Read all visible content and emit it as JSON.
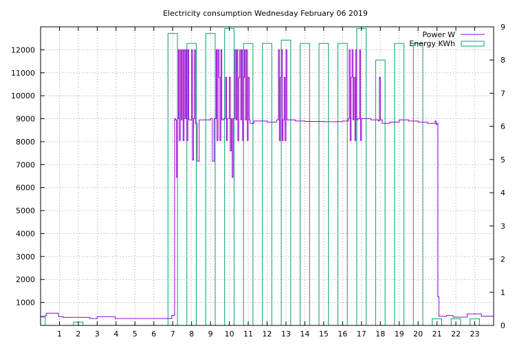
{
  "chart_data": {
    "type": "bar+line",
    "title": "Electricity consumption Wednesday February 06 2019",
    "xlabel": "",
    "ylabel": "",
    "y2label": "",
    "xlim": [
      0,
      24
    ],
    "ylim": [
      0,
      13000
    ],
    "y2lim": [
      0,
      9
    ],
    "x_ticks": [
      1,
      2,
      3,
      4,
      5,
      6,
      7,
      8,
      9,
      10,
      11,
      12,
      13,
      14,
      15,
      16,
      17,
      18,
      19,
      20,
      21,
      22,
      23
    ],
    "y_ticks": [
      1000,
      2000,
      3000,
      4000,
      5000,
      6000,
      7000,
      8000,
      9000,
      10000,
      11000,
      12000
    ],
    "y2_ticks": [
      0,
      1,
      2,
      3,
      4,
      5,
      6,
      7,
      8,
      9
    ],
    "grid": true,
    "legend_position": "top-right",
    "colors": {
      "power": "#9400d3",
      "energy": "#009e73"
    },
    "series": [
      {
        "name": "Power W",
        "kind": "line",
        "axis": "y1",
        "points": [
          [
            0,
            400
          ],
          [
            0.25,
            420
          ],
          [
            0.3,
            530
          ],
          [
            0.9,
            530
          ],
          [
            0.95,
            380
          ],
          [
            1.2,
            350
          ],
          [
            2.5,
            350
          ],
          [
            2.6,
            300
          ],
          [
            2.95,
            300
          ],
          [
            3.0,
            380
          ],
          [
            3.9,
            380
          ],
          [
            3.95,
            300
          ],
          [
            6.9,
            300
          ],
          [
            6.95,
            430
          ],
          [
            7.05,
            450
          ],
          [
            7.1,
            9000
          ],
          [
            7.15,
            8950
          ],
          [
            7.2,
            6450
          ],
          [
            7.25,
            9000
          ],
          [
            7.3,
            12000
          ],
          [
            7.35,
            8050
          ],
          [
            7.4,
            12000
          ],
          [
            7.45,
            8950
          ],
          [
            7.5,
            12000
          ],
          [
            7.55,
            8050
          ],
          [
            7.6,
            12000
          ],
          [
            7.65,
            9000
          ],
          [
            7.7,
            12000
          ],
          [
            7.75,
            8050
          ],
          [
            7.8,
            12000
          ],
          [
            7.85,
            8950
          ],
          [
            7.9,
            8950
          ],
          [
            8.0,
            12000
          ],
          [
            8.05,
            7200
          ],
          [
            8.1,
            9000
          ],
          [
            8.15,
            12000
          ],
          [
            8.2,
            8800
          ],
          [
            8.3,
            7150
          ],
          [
            8.4,
            8950
          ],
          [
            8.5,
            8950
          ],
          [
            9.0,
            9000
          ],
          [
            9.1,
            7150
          ],
          [
            9.2,
            9000
          ],
          [
            9.3,
            12000
          ],
          [
            9.35,
            8050
          ],
          [
            9.4,
            12000
          ],
          [
            9.45,
            10800
          ],
          [
            9.5,
            8050
          ],
          [
            9.55,
            12000
          ],
          [
            9.6,
            8950
          ],
          [
            9.7,
            9000
          ],
          [
            9.8,
            10800
          ],
          [
            9.85,
            8050
          ],
          [
            9.9,
            9000
          ],
          [
            10.0,
            10800
          ],
          [
            10.05,
            7600
          ],
          [
            10.1,
            9000
          ],
          [
            10.15,
            6450
          ],
          [
            10.2,
            9000
          ],
          [
            10.3,
            12000
          ],
          [
            10.35,
            8950
          ],
          [
            10.4,
            12000
          ],
          [
            10.45,
            8050
          ],
          [
            10.5,
            10800
          ],
          [
            10.55,
            12000
          ],
          [
            10.6,
            8950
          ],
          [
            10.65,
            12000
          ],
          [
            10.7,
            8050
          ],
          [
            10.75,
            10800
          ],
          [
            10.8,
            12000
          ],
          [
            10.85,
            8950
          ],
          [
            10.9,
            12000
          ],
          [
            10.95,
            8050
          ],
          [
            11.0,
            10800
          ],
          [
            11.05,
            8950
          ],
          [
            11.1,
            8800
          ],
          [
            11.3,
            8900
          ],
          [
            12.0,
            8850
          ],
          [
            12.3,
            8850
          ],
          [
            12.5,
            8950
          ],
          [
            12.6,
            12000
          ],
          [
            12.65,
            8050
          ],
          [
            12.7,
            10800
          ],
          [
            12.75,
            12000
          ],
          [
            12.8,
            8050
          ],
          [
            12.85,
            8950
          ],
          [
            12.9,
            10800
          ],
          [
            12.95,
            8050
          ],
          [
            13.0,
            12000
          ],
          [
            13.05,
            8950
          ],
          [
            13.1,
            8950
          ],
          [
            13.5,
            8900
          ],
          [
            14.0,
            8880
          ],
          [
            15.0,
            8870
          ],
          [
            16.0,
            8900
          ],
          [
            16.3,
            9000
          ],
          [
            16.35,
            12000
          ],
          [
            16.4,
            8050
          ],
          [
            16.45,
            10800
          ],
          [
            16.5,
            12000
          ],
          [
            16.55,
            8950
          ],
          [
            16.6,
            10800
          ],
          [
            16.65,
            8050
          ],
          [
            16.7,
            12000
          ],
          [
            16.75,
            8950
          ],
          [
            16.8,
            9000
          ],
          [
            16.9,
            12000
          ],
          [
            16.95,
            8050
          ],
          [
            17.0,
            9000
          ],
          [
            17.5,
            8950
          ],
          [
            17.9,
            8900
          ],
          [
            17.95,
            10800
          ],
          [
            18.0,
            8950
          ],
          [
            18.1,
            8800
          ],
          [
            18.5,
            8850
          ],
          [
            19.0,
            8950
          ],
          [
            19.5,
            8900
          ],
          [
            20.0,
            8850
          ],
          [
            20.5,
            8800
          ],
          [
            20.9,
            8900
          ],
          [
            20.95,
            8750
          ],
          [
            21.0,
            8800
          ],
          [
            21.05,
            1250
          ],
          [
            21.1,
            400
          ],
          [
            21.5,
            430
          ],
          [
            21.8,
            430
          ],
          [
            21.85,
            360
          ],
          [
            22.5,
            360
          ],
          [
            22.6,
            500
          ],
          [
            23.3,
            500
          ],
          [
            23.35,
            400
          ],
          [
            24.0,
            400
          ]
        ]
      },
      {
        "name": "Energy KWh",
        "kind": "bar",
        "axis": "y2",
        "bins": [
          {
            "start": 0,
            "end": 0.25,
            "value": 0.25
          },
          {
            "start": 1.75,
            "end": 2.25,
            "value": 0.1
          },
          {
            "start": 6.75,
            "end": 7.25,
            "value": 8.8
          },
          {
            "start": 7.75,
            "end": 8.25,
            "value": 8.5
          },
          {
            "start": 8.75,
            "end": 9.25,
            "value": 8.8
          },
          {
            "start": 9.75,
            "end": 10.25,
            "value": 8.95
          },
          {
            "start": 10.75,
            "end": 11.25,
            "value": 8.5
          },
          {
            "start": 11.75,
            "end": 12.25,
            "value": 8.5
          },
          {
            "start": 12.75,
            "end": 13.25,
            "value": 8.6
          },
          {
            "start": 13.75,
            "end": 14.25,
            "value": 8.5
          },
          {
            "start": 14.75,
            "end": 15.25,
            "value": 8.5
          },
          {
            "start": 15.75,
            "end": 16.25,
            "value": 8.5
          },
          {
            "start": 16.75,
            "end": 17.25,
            "value": 8.95
          },
          {
            "start": 17.75,
            "end": 18.25,
            "value": 8.0
          },
          {
            "start": 18.75,
            "end": 19.25,
            "value": 8.5
          },
          {
            "start": 19.75,
            "end": 20.25,
            "value": 8.5
          },
          {
            "start": 20.75,
            "end": 21.25,
            "value": 0.2
          },
          {
            "start": 21.75,
            "end": 22.25,
            "value": 0.2
          },
          {
            "start": 22.75,
            "end": 23.25,
            "value": 0.2
          }
        ]
      }
    ]
  }
}
